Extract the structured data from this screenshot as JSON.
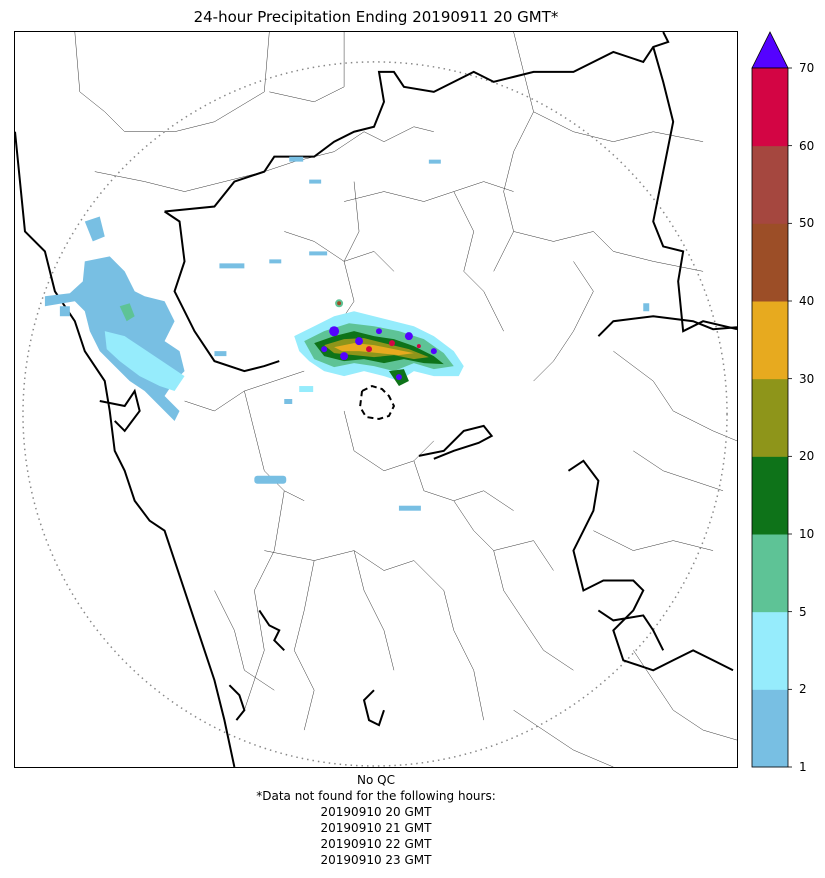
{
  "title": "24-hour Precipitation Ending 20190911 20 GMT*",
  "colorbar": {
    "levels": [
      1,
      2,
      5,
      10,
      20,
      30,
      40,
      50,
      60,
      70
    ],
    "tick_labels": [
      "1",
      "2",
      "5",
      "10",
      "20",
      "30",
      "40",
      "50",
      "60",
      "70"
    ],
    "colors": [
      "#78bfe3",
      "#96ecfc",
      "#5ec396",
      "#0e7319",
      "#8e951a",
      "#e7aa1f",
      "#9c4e27",
      "#a5473f",
      "#d30544"
    ],
    "extend_color": "#5402ff"
  },
  "footer": {
    "qc_status": "No QC",
    "missing_note": "*Data not found for the following hours:",
    "missing_hours": [
      "20190910 20 GMT",
      "20190910 21 GMT",
      "20190910 22 GMT",
      "20190910 23 GMT"
    ]
  }
}
